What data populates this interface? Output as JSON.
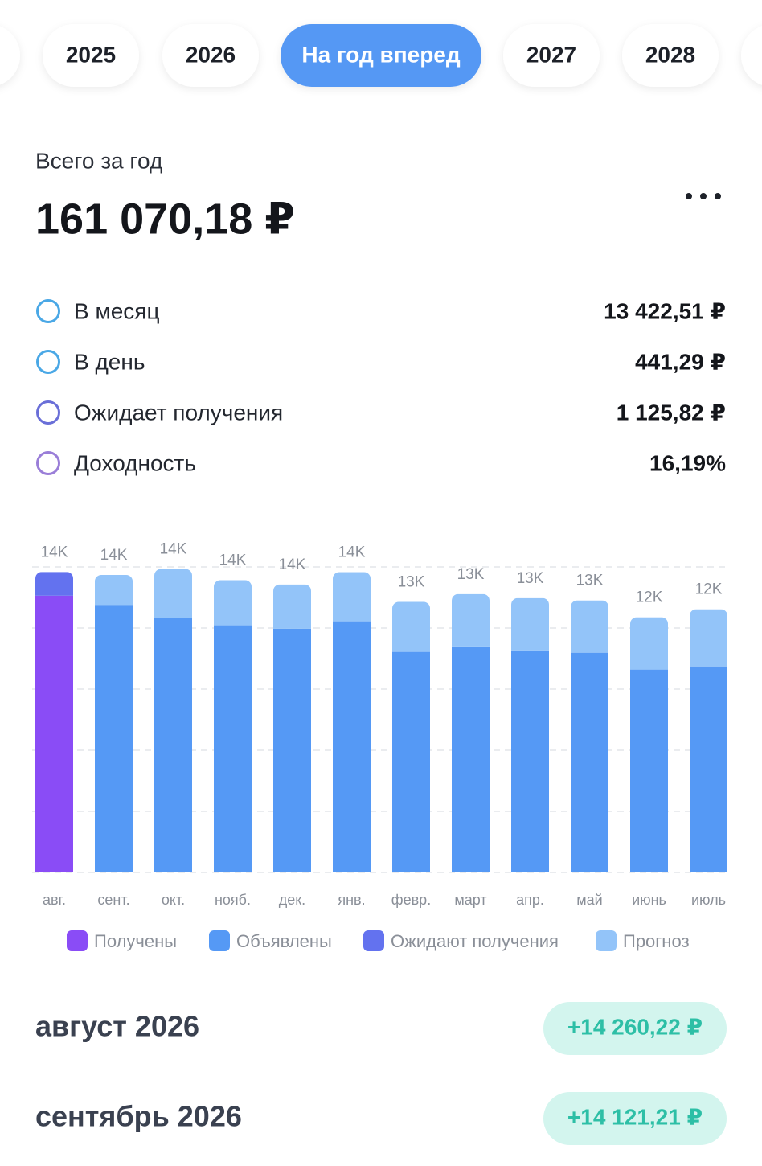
{
  "tabs": [
    "2025",
    "2026",
    "На год вперед",
    "2027",
    "2028"
  ],
  "active_tab": 2,
  "summary": {
    "label": "Всего за год",
    "total": "161 070,18 ₽"
  },
  "stats": [
    {
      "label": "В месяц",
      "value": "13 422,51 ₽",
      "color": "#4aa8e6"
    },
    {
      "label": "В день",
      "value": "441,29 ₽",
      "color": "#4aa8e6"
    },
    {
      "label": "Ожидает получения",
      "value": "1 125,82 ₽",
      "color": "#6a6fd8"
    },
    {
      "label": "Доходность",
      "value": "16,19%",
      "color": "#9a7ed8"
    }
  ],
  "chart_data": {
    "type": "stacked_bar",
    "categories": [
      "авг.",
      "сент.",
      "окт.",
      "нояб.",
      "дек.",
      "янв.",
      "февр.",
      "март",
      "апр.",
      "май",
      "июнь",
      "июль"
    ],
    "series": [
      {
        "name": "Получены",
        "color": "#8a4cf6",
        "values": [
          13134,
          null,
          null,
          null,
          null,
          null,
          null,
          null,
          null,
          null,
          null,
          null
        ]
      },
      {
        "name": "Объявлены",
        "color": "#5599f5",
        "values": [
          null,
          12700,
          12070,
          11730,
          11570,
          11920,
          10470,
          10730,
          10540,
          10430,
          9630,
          9780
        ]
      },
      {
        "name": "Ожидают получения",
        "color": "#6372ef",
        "values": [
          1126,
          null,
          null,
          null,
          null,
          null,
          null,
          null,
          null,
          null,
          null,
          null
        ]
      },
      {
        "name": "Прогноз",
        "color": "#93c4f9",
        "values": [
          null,
          1420,
          2330,
          2140,
          2100,
          2330,
          2370,
          2480,
          2480,
          2480,
          2480,
          2710
        ]
      }
    ],
    "total_labels": [
      "14K",
      "14K",
      "14K",
      "14K",
      "14K",
      "14K",
      "13K",
      "13K",
      "13K",
      "13K",
      "12K",
      "12K"
    ],
    "ylim": [
      0,
      14500
    ],
    "grid": true
  },
  "months": [
    {
      "name": "август 2026",
      "amount": "+14 260,22 ₽"
    },
    {
      "name": "сентябрь 2026",
      "amount": "+14 121,21 ₽"
    }
  ]
}
